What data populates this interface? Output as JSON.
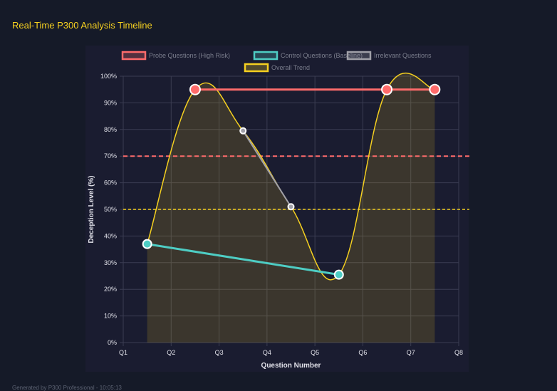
{
  "title": "Real-Time P300 Analysis Timeline",
  "footer": "Generated by P300 Professional - 10:05:13",
  "chart_data": {
    "type": "line",
    "xlabel": "Question Number",
    "ylabel": "Deception Level (%)",
    "x_tick_labels": [
      "Q1",
      "Q2",
      "Q3",
      "Q4",
      "Q5",
      "Q6",
      "Q7",
      "Q8"
    ],
    "y_tick_labels": [
      "0%",
      "10%",
      "20%",
      "30%",
      "40%",
      "50%",
      "60%",
      "70%",
      "80%",
      "90%",
      "100%"
    ],
    "ylim": [
      0,
      100
    ],
    "grid": true,
    "legend_position": "top",
    "series": [
      {
        "name": "Probe Questions (High Risk)",
        "color": "#ff6b6b",
        "points": [
          [
            2.5,
            95
          ],
          [
            6.5,
            95
          ],
          [
            7.5,
            95
          ]
        ]
      },
      {
        "name": "Control Questions (Baseline)",
        "color": "#4ecdc4",
        "points": [
          [
            1.5,
            37
          ],
          [
            5.5,
            25.5
          ]
        ]
      },
      {
        "name": "Irrelevant Questions",
        "color": "#a0a0a8",
        "points": [
          [
            3.5,
            79.5
          ],
          [
            4.5,
            51
          ]
        ]
      },
      {
        "name": "Overall Trend",
        "color": "#f5d020",
        "fill": true,
        "points": [
          [
            1.5,
            37
          ],
          [
            2.5,
            95
          ],
          [
            3.5,
            79.5
          ],
          [
            4.5,
            51
          ],
          [
            5.5,
            25.5
          ],
          [
            6.5,
            95
          ],
          [
            7.5,
            95
          ]
        ]
      }
    ],
    "thresholds": [
      {
        "value": 70,
        "color": "#ff6b6b"
      },
      {
        "value": 50,
        "color": "#f5d020"
      }
    ]
  }
}
